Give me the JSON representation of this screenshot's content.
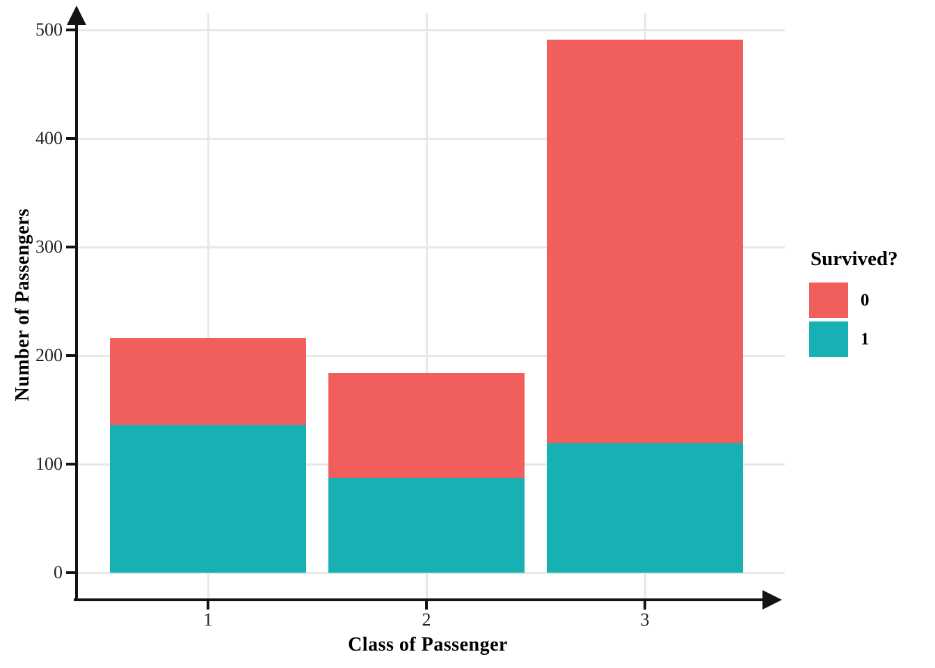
{
  "chart_data": {
    "type": "bar",
    "stacked": true,
    "title": "",
    "xlabel": "Class of Passenger",
    "ylabel": "Number of Passengers",
    "categories": [
      "1",
      "2",
      "3"
    ],
    "series": [
      {
        "name": "0",
        "color": "#f15f5c",
        "values": [
          80,
          97,
          372
        ]
      },
      {
        "name": "1",
        "color": "#17b1b4",
        "values": [
          136,
          87,
          119
        ]
      }
    ],
    "stack_totals": [
      216,
      184,
      491
    ],
    "ylim": [
      0,
      500
    ],
    "yticks": [
      "0",
      "100",
      "200",
      "300",
      "400",
      "500"
    ],
    "grid": true,
    "legend": {
      "title": "Survived?",
      "position": "right",
      "entries": [
        "0",
        "1"
      ]
    },
    "colors": {
      "background": "#ffffff",
      "gridline": "#e8e8e8",
      "axis": "#141414",
      "text": "#1f1f1f"
    }
  }
}
